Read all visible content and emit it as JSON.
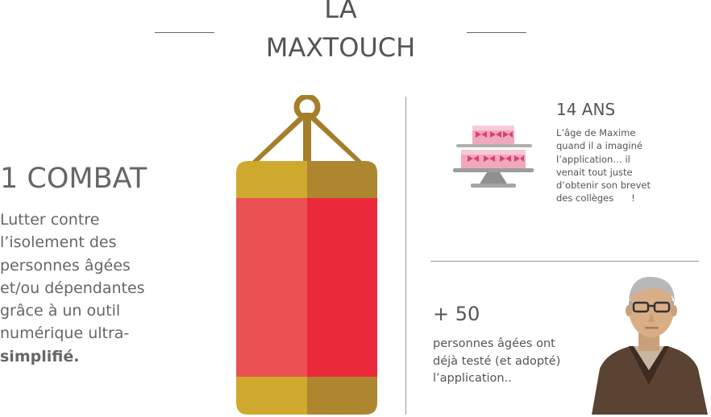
{
  "header": {
    "title_line1": "LA",
    "title_line2": "MAXTOUCH"
  },
  "combat": {
    "title": "1 COMBAT",
    "text_lines": [
      "Lutter contre",
      "l’isolement des",
      "personnes âgées",
      "et/ou dépendantes",
      "grâce à un outil",
      "numérique ultra-"
    ],
    "text_strong": "simplifié."
  },
  "age": {
    "title": "14 ANS",
    "text_lines": [
      "L’âge de Maxime",
      "quand il a imaginé",
      "l’application… il",
      "venait tout juste",
      "d’obtenir son brevet",
      "des collèges      !"
    ]
  },
  "users": {
    "title": "+ 50",
    "text_lines": [
      "personnes âgées ont",
      "déjà testé (et adopté)",
      "l’application.."
    ]
  },
  "icons": {
    "punching_bag": "punching-bag-icon",
    "cake": "birthday-cake-icon",
    "person": "elderly-man-icon"
  },
  "colors": {
    "bag_red": "#ea2a3a",
    "bag_red_light": "#ea5152",
    "bag_gold": "#cfa82e",
    "bag_gold_dark": "#ae8630",
    "text": "#555555"
  }
}
